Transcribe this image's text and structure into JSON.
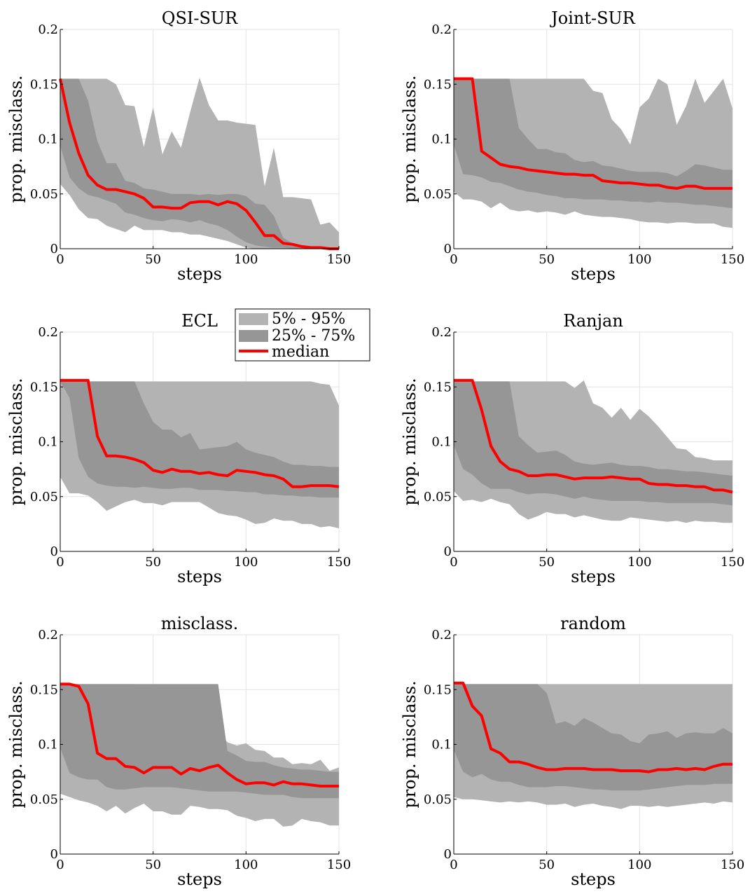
{
  "figure": {
    "legend": {
      "entries": [
        "5% - 95%",
        "25% - 75%",
        "median"
      ],
      "colors": {
        "outer": "#b3b3b3",
        "inner": "#969696",
        "median": "#ff0000"
      },
      "location": "top-right of ECL panel"
    }
  },
  "chart_data": [
    {
      "type": "area",
      "title": "QSI-SUR",
      "xlabel": "steps",
      "ylabel": "prop. misclass.",
      "xlim": [
        0,
        150
      ],
      "ylim": [
        0,
        0.2
      ],
      "xticks": [
        "0",
        "50",
        "100",
        "150"
      ],
      "yticks": [
        "0",
        "0.05",
        "0.1",
        "0.15",
        "0.2"
      ],
      "grid": true,
      "x": [
        0,
        5,
        10,
        15,
        20,
        25,
        30,
        35,
        40,
        45,
        50,
        55,
        60,
        65,
        70,
        75,
        80,
        85,
        90,
        95,
        100,
        105,
        110,
        115,
        120,
        125,
        130,
        135,
        140,
        145,
        150
      ],
      "p5": [
        0.059,
        0.049,
        0.036,
        0.028,
        0.027,
        0.021,
        0.018,
        0.015,
        0.021,
        0.017,
        0.017,
        0.017,
        0.015,
        0.015,
        0.013,
        0.013,
        0.011,
        0.009,
        0.007,
        0.004,
        0.001,
        0.0,
        0.0,
        0.0,
        0.0,
        0.0,
        0.0,
        0.0,
        0.0,
        0.0,
        0.0
      ],
      "p25": [
        0.094,
        0.065,
        0.055,
        0.049,
        0.047,
        0.044,
        0.041,
        0.033,
        0.031,
        0.028,
        0.026,
        0.025,
        0.027,
        0.026,
        0.024,
        0.026,
        0.023,
        0.021,
        0.017,
        0.011,
        0.006,
        0.003,
        0.002,
        0.001,
        0.001,
        0.0,
        0.0,
        0.0,
        0.0,
        0.0,
        0.0
      ],
      "median": [
        0.155,
        0.115,
        0.087,
        0.067,
        0.058,
        0.054,
        0.054,
        0.052,
        0.05,
        0.046,
        0.038,
        0.038,
        0.037,
        0.037,
        0.042,
        0.043,
        0.043,
        0.04,
        0.043,
        0.041,
        0.035,
        0.024,
        0.012,
        0.012,
        0.005,
        0.004,
        0.002,
        0.001,
        0.001,
        0.0,
        0.0
      ],
      "p75": [
        0.155,
        0.155,
        0.155,
        0.135,
        0.098,
        0.078,
        0.078,
        0.062,
        0.06,
        0.055,
        0.054,
        0.052,
        0.05,
        0.05,
        0.05,
        0.049,
        0.05,
        0.049,
        0.05,
        0.05,
        0.048,
        0.041,
        0.04,
        0.03,
        0.01,
        0.005,
        0.003,
        0.002,
        0.001,
        0.0,
        0.0
      ],
      "p95": [
        0.155,
        0.155,
        0.155,
        0.155,
        0.155,
        0.155,
        0.15,
        0.131,
        0.13,
        0.093,
        0.129,
        0.086,
        0.107,
        0.092,
        0.125,
        0.156,
        0.131,
        0.117,
        0.117,
        0.115,
        0.114,
        0.113,
        0.057,
        0.092,
        0.047,
        0.047,
        0.046,
        0.045,
        0.022,
        0.024,
        0.015
      ]
    },
    {
      "type": "area",
      "title": "Joint-SUR",
      "xlabel": "steps",
      "ylabel": "prop. misclass.",
      "xlim": [
        0,
        150
      ],
      "ylim": [
        0,
        0.2
      ],
      "xticks": [
        "0",
        "50",
        "100",
        "150"
      ],
      "yticks": [
        "0",
        "0.05",
        "0.1",
        "0.15",
        "0.2"
      ],
      "grid": true,
      "x": [
        0,
        5,
        10,
        15,
        20,
        25,
        30,
        35,
        40,
        45,
        50,
        55,
        60,
        65,
        70,
        75,
        80,
        85,
        90,
        95,
        100,
        105,
        110,
        115,
        120,
        125,
        130,
        135,
        140,
        145,
        150
      ],
      "p5": [
        0.052,
        0.045,
        0.045,
        0.043,
        0.037,
        0.042,
        0.036,
        0.034,
        0.035,
        0.033,
        0.034,
        0.033,
        0.031,
        0.034,
        0.031,
        0.03,
        0.029,
        0.029,
        0.028,
        0.027,
        0.025,
        0.024,
        0.024,
        0.023,
        0.024,
        0.024,
        0.023,
        0.023,
        0.023,
        0.02,
        0.019
      ],
      "p25": [
        0.095,
        0.068,
        0.067,
        0.065,
        0.061,
        0.06,
        0.057,
        0.054,
        0.052,
        0.051,
        0.049,
        0.048,
        0.046,
        0.046,
        0.045,
        0.045,
        0.045,
        0.044,
        0.044,
        0.043,
        0.043,
        0.042,
        0.043,
        0.042,
        0.042,
        0.041,
        0.04,
        0.04,
        0.039,
        0.038,
        0.037
      ],
      "median": [
        0.155,
        0.155,
        0.155,
        0.089,
        0.083,
        0.077,
        0.075,
        0.074,
        0.072,
        0.071,
        0.07,
        0.069,
        0.068,
        0.068,
        0.067,
        0.067,
        0.062,
        0.061,
        0.06,
        0.06,
        0.059,
        0.058,
        0.058,
        0.056,
        0.055,
        0.057,
        0.057,
        0.055,
        0.055,
        0.055,
        0.055
      ],
      "p75": [
        0.155,
        0.155,
        0.155,
        0.155,
        0.155,
        0.155,
        0.155,
        0.11,
        0.1,
        0.091,
        0.091,
        0.088,
        0.087,
        0.081,
        0.079,
        0.08,
        0.076,
        0.075,
        0.073,
        0.071,
        0.07,
        0.07,
        0.07,
        0.069,
        0.066,
        0.071,
        0.077,
        0.076,
        0.074,
        0.072,
        0.072
      ],
      "p95": [
        0.155,
        0.155,
        0.155,
        0.155,
        0.155,
        0.155,
        0.155,
        0.155,
        0.155,
        0.155,
        0.155,
        0.155,
        0.155,
        0.155,
        0.155,
        0.144,
        0.142,
        0.118,
        0.109,
        0.095,
        0.129,
        0.137,
        0.155,
        0.15,
        0.113,
        0.13,
        0.155,
        0.133,
        0.144,
        0.155,
        0.128
      ]
    },
    {
      "type": "area",
      "title": "ECL",
      "xlabel": "steps",
      "ylabel": "prop. misclass.",
      "xlim": [
        0,
        150
      ],
      "ylim": [
        0,
        0.2
      ],
      "xticks": [
        "0",
        "50",
        "100",
        "150"
      ],
      "yticks": [
        "0",
        "0.05",
        "0.1",
        "0.15",
        "0.2"
      ],
      "grid": true,
      "x": [
        0,
        5,
        10,
        15,
        20,
        25,
        30,
        35,
        40,
        45,
        50,
        55,
        60,
        65,
        70,
        75,
        80,
        85,
        90,
        95,
        100,
        105,
        110,
        115,
        120,
        125,
        130,
        135,
        140,
        145,
        150
      ],
      "p5": [
        0.068,
        0.053,
        0.053,
        0.051,
        0.045,
        0.037,
        0.041,
        0.045,
        0.047,
        0.044,
        0.044,
        0.042,
        0.045,
        0.045,
        0.045,
        0.045,
        0.04,
        0.035,
        0.033,
        0.032,
        0.029,
        0.025,
        0.026,
        0.03,
        0.028,
        0.028,
        0.025,
        0.025,
        0.022,
        0.023,
        0.021
      ],
      "p25": [
        0.155,
        0.14,
        0.085,
        0.068,
        0.062,
        0.06,
        0.059,
        0.059,
        0.058,
        0.059,
        0.058,
        0.057,
        0.057,
        0.058,
        0.058,
        0.056,
        0.056,
        0.056,
        0.055,
        0.055,
        0.054,
        0.054,
        0.052,
        0.052,
        0.051,
        0.051,
        0.05,
        0.05,
        0.049,
        0.049,
        0.049
      ],
      "median": [
        0.156,
        0.156,
        0.156,
        0.156,
        0.105,
        0.087,
        0.087,
        0.086,
        0.084,
        0.081,
        0.074,
        0.072,
        0.075,
        0.073,
        0.073,
        0.071,
        0.072,
        0.07,
        0.069,
        0.074,
        0.073,
        0.072,
        0.07,
        0.069,
        0.066,
        0.059,
        0.059,
        0.06,
        0.06,
        0.06,
        0.059
      ],
      "p75": [
        0.155,
        0.155,
        0.155,
        0.155,
        0.155,
        0.155,
        0.155,
        0.155,
        0.155,
        0.135,
        0.118,
        0.111,
        0.111,
        0.104,
        0.108,
        0.093,
        0.094,
        0.095,
        0.096,
        0.1,
        0.093,
        0.09,
        0.088,
        0.086,
        0.082,
        0.079,
        0.079,
        0.078,
        0.078,
        0.077,
        0.077
      ],
      "p95": [
        0.155,
        0.155,
        0.155,
        0.155,
        0.155,
        0.155,
        0.155,
        0.155,
        0.155,
        0.155,
        0.155,
        0.155,
        0.155,
        0.155,
        0.155,
        0.155,
        0.155,
        0.155,
        0.155,
        0.155,
        0.155,
        0.155,
        0.155,
        0.155,
        0.155,
        0.155,
        0.155,
        0.155,
        0.153,
        0.152,
        0.133
      ]
    },
    {
      "type": "area",
      "title": "Ranjan",
      "xlabel": "steps",
      "ylabel": "prop. misclass.",
      "xlim": [
        0,
        150
      ],
      "ylim": [
        0,
        0.2
      ],
      "xticks": [
        "0",
        "50",
        "100",
        "150"
      ],
      "yticks": [
        "0",
        "0.05",
        "0.1",
        "0.15",
        "0.2"
      ],
      "grid": true,
      "x": [
        0,
        5,
        10,
        15,
        20,
        25,
        30,
        35,
        40,
        45,
        50,
        55,
        60,
        65,
        70,
        75,
        80,
        85,
        90,
        95,
        100,
        105,
        110,
        115,
        120,
        125,
        130,
        135,
        140,
        145,
        150
      ],
      "p5": [
        0.055,
        0.046,
        0.047,
        0.045,
        0.048,
        0.045,
        0.043,
        0.034,
        0.029,
        0.032,
        0.036,
        0.034,
        0.034,
        0.031,
        0.033,
        0.031,
        0.029,
        0.028,
        0.028,
        0.031,
        0.03,
        0.029,
        0.028,
        0.027,
        0.028,
        0.026,
        0.028,
        0.027,
        0.027,
        0.026,
        0.026
      ],
      "p25": [
        0.097,
        0.075,
        0.07,
        0.062,
        0.057,
        0.057,
        0.057,
        0.054,
        0.052,
        0.053,
        0.053,
        0.052,
        0.05,
        0.048,
        0.05,
        0.048,
        0.047,
        0.046,
        0.046,
        0.046,
        0.046,
        0.045,
        0.045,
        0.044,
        0.044,
        0.044,
        0.044,
        0.044,
        0.044,
        0.043,
        0.042
      ],
      "median": [
        0.156,
        0.156,
        0.156,
        0.129,
        0.096,
        0.082,
        0.075,
        0.073,
        0.069,
        0.069,
        0.07,
        0.07,
        0.068,
        0.066,
        0.067,
        0.067,
        0.067,
        0.068,
        0.067,
        0.066,
        0.066,
        0.062,
        0.061,
        0.061,
        0.06,
        0.06,
        0.059,
        0.059,
        0.056,
        0.056,
        0.054
      ],
      "p75": [
        0.155,
        0.155,
        0.155,
        0.155,
        0.155,
        0.155,
        0.155,
        0.105,
        0.097,
        0.09,
        0.091,
        0.092,
        0.088,
        0.082,
        0.08,
        0.079,
        0.08,
        0.081,
        0.079,
        0.078,
        0.078,
        0.077,
        0.075,
        0.075,
        0.074,
        0.073,
        0.073,
        0.072,
        0.071,
        0.07,
        0.069
      ],
      "p95": [
        0.155,
        0.155,
        0.155,
        0.155,
        0.155,
        0.155,
        0.155,
        0.155,
        0.155,
        0.155,
        0.155,
        0.155,
        0.155,
        0.149,
        0.156,
        0.135,
        0.131,
        0.122,
        0.131,
        0.12,
        0.13,
        0.123,
        0.114,
        0.104,
        0.094,
        0.093,
        0.086,
        0.085,
        0.083,
        0.083,
        0.083
      ]
    },
    {
      "type": "area",
      "title": "misclass.",
      "xlabel": "steps",
      "ylabel": "prop. misclass.",
      "xlim": [
        0,
        150
      ],
      "ylim": [
        0,
        0.2
      ],
      "xticks": [
        "0",
        "50",
        "100",
        "150"
      ],
      "yticks": [
        "0",
        "0.05",
        "0.1",
        "0.15",
        "0.2"
      ],
      "grid": true,
      "x": [
        0,
        5,
        10,
        15,
        20,
        25,
        30,
        35,
        40,
        45,
        50,
        55,
        60,
        65,
        70,
        75,
        80,
        85,
        90,
        95,
        100,
        105,
        110,
        115,
        120,
        125,
        130,
        135,
        140,
        145,
        150
      ],
      "p5": [
        0.055,
        0.052,
        0.049,
        0.047,
        0.044,
        0.039,
        0.044,
        0.037,
        0.042,
        0.046,
        0.039,
        0.039,
        0.036,
        0.036,
        0.044,
        0.043,
        0.041,
        0.041,
        0.04,
        0.035,
        0.033,
        0.03,
        0.032,
        0.032,
        0.025,
        0.026,
        0.032,
        0.03,
        0.029,
        0.026,
        0.026
      ],
      "p25": [
        0.097,
        0.074,
        0.07,
        0.068,
        0.068,
        0.061,
        0.059,
        0.059,
        0.06,
        0.061,
        0.061,
        0.061,
        0.061,
        0.06,
        0.059,
        0.058,
        0.057,
        0.057,
        0.057,
        0.057,
        0.056,
        0.055,
        0.054,
        0.054,
        0.054,
        0.052,
        0.051,
        0.051,
        0.051,
        0.051,
        0.051
      ],
      "median": [
        0.155,
        0.155,
        0.153,
        0.137,
        0.092,
        0.087,
        0.087,
        0.08,
        0.079,
        0.074,
        0.079,
        0.079,
        0.079,
        0.073,
        0.078,
        0.076,
        0.079,
        0.081,
        0.074,
        0.068,
        0.064,
        0.065,
        0.065,
        0.063,
        0.066,
        0.064,
        0.064,
        0.063,
        0.062,
        0.062,
        0.062
      ],
      "p75": [
        0.155,
        0.155,
        0.155,
        0.155,
        0.155,
        0.155,
        0.155,
        0.155,
        0.155,
        0.155,
        0.155,
        0.155,
        0.155,
        0.155,
        0.155,
        0.155,
        0.155,
        0.155,
        0.094,
        0.09,
        0.085,
        0.084,
        0.084,
        0.081,
        0.079,
        0.078,
        0.077,
        0.077,
        0.076,
        0.075,
        0.075
      ],
      "p95": [
        0.155,
        0.155,
        0.155,
        0.155,
        0.155,
        0.155,
        0.155,
        0.155,
        0.155,
        0.137,
        0.147,
        0.132,
        0.12,
        0.13,
        0.153,
        0.111,
        0.109,
        0.111,
        0.102,
        0.099,
        0.101,
        0.095,
        0.094,
        0.088,
        0.088,
        0.082,
        0.083,
        0.082,
        0.086,
        0.076,
        0.079
      ]
    },
    {
      "type": "area",
      "title": "random",
      "xlabel": "steps",
      "ylabel": "prop. misclass.",
      "xlim": [
        0,
        150
      ],
      "ylim": [
        0,
        0.2
      ],
      "xticks": [
        "0",
        "50",
        "100",
        "150"
      ],
      "yticks": [
        "0",
        "0.05",
        "0.1",
        "0.15",
        "0.2"
      ],
      "grid": true,
      "x": [
        0,
        5,
        10,
        15,
        20,
        25,
        30,
        35,
        40,
        45,
        50,
        55,
        60,
        65,
        70,
        75,
        80,
        85,
        90,
        95,
        100,
        105,
        110,
        115,
        120,
        125,
        130,
        135,
        140,
        145,
        150
      ],
      "p5": [
        0.052,
        0.05,
        0.05,
        0.049,
        0.048,
        0.047,
        0.048,
        0.047,
        0.048,
        0.047,
        0.045,
        0.045,
        0.046,
        0.043,
        0.045,
        0.046,
        0.044,
        0.043,
        0.041,
        0.044,
        0.044,
        0.043,
        0.044,
        0.043,
        0.044,
        0.045,
        0.046,
        0.047,
        0.046,
        0.048,
        0.047
      ],
      "p25": [
        0.095,
        0.075,
        0.07,
        0.073,
        0.068,
        0.066,
        0.066,
        0.063,
        0.061,
        0.061,
        0.061,
        0.062,
        0.062,
        0.061,
        0.06,
        0.059,
        0.059,
        0.058,
        0.058,
        0.058,
        0.058,
        0.059,
        0.06,
        0.061,
        0.062,
        0.063,
        0.063,
        0.063,
        0.064,
        0.064,
        0.064
      ],
      "median": [
        0.156,
        0.156,
        0.135,
        0.126,
        0.096,
        0.092,
        0.084,
        0.084,
        0.082,
        0.079,
        0.077,
        0.077,
        0.078,
        0.078,
        0.078,
        0.077,
        0.077,
        0.077,
        0.076,
        0.076,
        0.076,
        0.075,
        0.077,
        0.077,
        0.078,
        0.077,
        0.078,
        0.077,
        0.08,
        0.082,
        0.082
      ],
      "p75": [
        0.155,
        0.155,
        0.155,
        0.155,
        0.155,
        0.155,
        0.155,
        0.155,
        0.155,
        0.155,
        0.147,
        0.119,
        0.121,
        0.117,
        0.124,
        0.12,
        0.115,
        0.11,
        0.109,
        0.103,
        0.101,
        0.109,
        0.11,
        0.112,
        0.106,
        0.11,
        0.111,
        0.11,
        0.11,
        0.115,
        0.11
      ],
      "p95": [
        0.155,
        0.155,
        0.155,
        0.155,
        0.155,
        0.155,
        0.155,
        0.155,
        0.155,
        0.155,
        0.155,
        0.155,
        0.155,
        0.155,
        0.155,
        0.155,
        0.155,
        0.155,
        0.155,
        0.155,
        0.155,
        0.155,
        0.155,
        0.155,
        0.155,
        0.155,
        0.155,
        0.155,
        0.155,
        0.155,
        0.155
      ]
    }
  ]
}
